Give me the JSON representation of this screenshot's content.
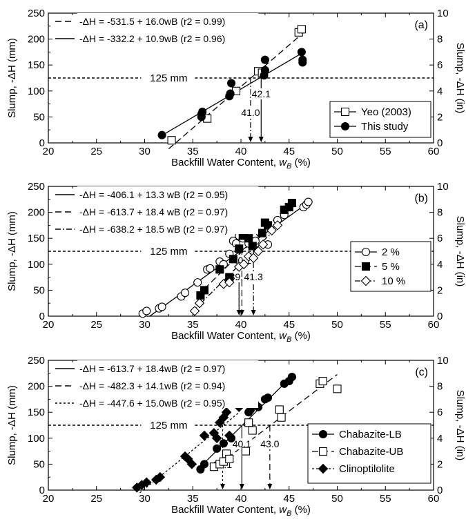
{
  "chart_data": [
    {
      "type": "scatter",
      "panel_label": "(a)",
      "xlabel_main": "Backfill Water Content, ",
      "xlabel_symbol": "w",
      "xlabel_sub": "B",
      "xlabel_unit": " (%)",
      "ylabel_left": "Slump, -ΔH (mm)",
      "ylabel_right": "Slump, -ΔH (in)",
      "xlim": [
        20,
        60
      ],
      "ylim": [
        0,
        250
      ],
      "ylim_right": [
        0,
        10
      ],
      "x_ticks": [
        "20",
        "25",
        "30",
        "35",
        "40",
        "45",
        "50",
        "55",
        "60"
      ],
      "y_ticks": [
        "0",
        "50",
        "100",
        "150",
        "200",
        "250"
      ],
      "y_ticks_right": [
        "0",
        "2",
        "4",
        "6",
        "8",
        "10"
      ],
      "reference_label": "125 mm",
      "reference_y": 125,
      "equations": [
        {
          "text": "-ΔH = -531.5 + 16.0wB (r2 = 0.99)",
          "intercept": -531.5,
          "slope": 16.0,
          "style": "dashed"
        },
        {
          "text": "-ΔH = -332.2 + 10.9wB (r2 = 0.96)",
          "intercept": -332.2,
          "slope": 10.9,
          "style": "solid"
        }
      ],
      "fits": [
        {
          "intercept": -531.5,
          "slope": 16.0,
          "x_range": [
            32.5,
            46.5
          ],
          "style": "dashed"
        },
        {
          "intercept": -332.2,
          "slope": 10.9,
          "x_range": [
            31.8,
            46.3
          ],
          "style": "solid"
        }
      ],
      "arrows": [
        {
          "x": 41.0,
          "label": "41.0",
          "style": "dashdot"
        },
        {
          "x": 42.1,
          "label": "42.1",
          "style": "solid"
        }
      ],
      "legend": {
        "placement": "bottom-right",
        "entries": [
          "Yeo (2003)",
          "This study"
        ]
      },
      "series": [
        {
          "name": "Yeo (2003)",
          "marker": "square-open",
          "x": [
            32.8,
            36.5,
            39.5,
            41.8,
            42.2,
            46.0,
            46.3
          ],
          "y": [
            5,
            47,
            100,
            138,
            135,
            213,
            219
          ]
        },
        {
          "name": "This study",
          "marker": "circle-filled",
          "x": [
            31.8,
            35.9,
            35.9,
            36.0,
            38.8,
            38.9,
            39.0,
            42.4,
            42.5,
            42.5,
            46.3,
            46.4,
            46.4
          ],
          "y": [
            15,
            50,
            55,
            60,
            90,
            95,
            115,
            130,
            140,
            160,
            175,
            160,
            155
          ]
        }
      ]
    },
    {
      "type": "scatter",
      "panel_label": "(b)",
      "xlabel_main": "Backfill Water Content, ",
      "xlabel_symbol": "w",
      "xlabel_sub": "B",
      "xlabel_unit": " (%)",
      "ylabel_left": "Slump, -ΔH (mm)",
      "ylabel_right": "Slump, -ΔH (in)",
      "xlim": [
        20,
        60
      ],
      "ylim": [
        0,
        250
      ],
      "ylim_right": [
        0,
        10
      ],
      "x_ticks": [
        "20",
        "25",
        "30",
        "35",
        "40",
        "45",
        "50",
        "55",
        "60"
      ],
      "y_ticks": [
        "0",
        "50",
        "100",
        "150",
        "200",
        "250"
      ],
      "y_ticks_right": [
        "0",
        "2",
        "4",
        "6",
        "8",
        "10"
      ],
      "reference_label": "125 mm",
      "reference_y": 125,
      "equations": [
        {
          "text": "-ΔH = -406.1 + 13.3 wB (r2 = 0.95)",
          "intercept": -406.1,
          "slope": 13.3,
          "style": "solid"
        },
        {
          "text": "-ΔH = -613.7 + 18.4 wB (r2 = 0.97)",
          "intercept": -613.7,
          "slope": 18.4,
          "style": "dashed"
        },
        {
          "text": "-ΔH = -638.2 + 18.5 wB (r2 = 0.97)",
          "intercept": -638.2,
          "slope": 18.5,
          "style": "dashdot"
        }
      ],
      "fits": [
        {
          "intercept": -406.1,
          "slope": 13.3,
          "x_range": [
            30.5,
            47.0
          ],
          "style": "solid"
        },
        {
          "intercept": -613.7,
          "slope": 18.4,
          "x_range": [
            35.5,
            45.2
          ],
          "style": "dashed"
        },
        {
          "intercept": -638.2,
          "slope": 18.5,
          "x_range": [
            35.0,
            44.0
          ],
          "style": "dashdot"
        }
      ],
      "arrows": [
        {
          "x": 39.8,
          "label": "39.8",
          "style": "solid"
        },
        {
          "x": 40.1,
          "label": "40.1",
          "style": "dashed"
        },
        {
          "x": 41.3,
          "label": "41.3",
          "style": "dashdot"
        }
      ],
      "legend": {
        "placement": "right",
        "entries": [
          "2 %",
          "5 %",
          "10 %"
        ]
      },
      "series": [
        {
          "name": "2 %",
          "marker": "circle-open",
          "x": [
            29.8,
            30.2,
            31.5,
            31.8,
            33.8,
            34.2,
            35.5,
            36.5,
            36.8,
            37.8,
            38.2,
            38.8,
            39.2,
            39.5,
            39.8,
            40.2,
            40.8,
            41.5,
            42.0,
            42.8,
            43.8,
            44.5,
            46.5,
            46.8,
            47.0
          ],
          "y": [
            5,
            10,
            15,
            18,
            38,
            45,
            65,
            90,
            92,
            105,
            100,
            120,
            145,
            140,
            155,
            150,
            140,
            145,
            160,
            138,
            185,
            195,
            210,
            215,
            220
          ]
        },
        {
          "name": "5 %",
          "marker": "square-filled",
          "x": [
            35.8,
            36.2,
            37.8,
            38.8,
            39.2,
            39.8,
            40.2,
            40.8,
            41.2,
            42.2,
            42.5,
            42.8,
            44.5,
            45.0,
            45.3
          ],
          "y": [
            40,
            50,
            90,
            75,
            110,
            130,
            155,
            150,
            135,
            160,
            180,
            175,
            205,
            210,
            218
          ]
        },
        {
          "name": "10 %",
          "marker": "diamond-open",
          "x": [
            35.2,
            35.7,
            38.2,
            38.8,
            39.8,
            40.3,
            40.8,
            41.3,
            41.8,
            42.3,
            43.2,
            43.8
          ],
          "y": [
            10,
            25,
            62,
            65,
            95,
            100,
            115,
            112,
            125,
            138,
            165,
            175
          ]
        }
      ]
    },
    {
      "type": "scatter",
      "panel_label": "(c)",
      "xlabel_main": "Backfill Water Content, ",
      "xlabel_symbol": "w",
      "xlabel_sub": "B",
      "xlabel_unit": " (%)",
      "ylabel_left": "Slump, -ΔH (mm)",
      "ylabel_right": "Slump, -ΔH (in)",
      "xlim": [
        20,
        60
      ],
      "ylim": [
        0,
        250
      ],
      "ylim_right": [
        0,
        10
      ],
      "x_ticks": [
        "20",
        "25",
        "30",
        "35",
        "40",
        "45",
        "50",
        "55",
        "60"
      ],
      "y_ticks": [
        "0",
        "50",
        "100",
        "150",
        "200",
        "250"
      ],
      "y_ticks_right": [
        "0",
        "2",
        "4",
        "6",
        "8",
        "10"
      ],
      "reference_label": "125 mm",
      "reference_y": 125,
      "equations": [
        {
          "text": "-ΔH = -613.7 + 18.4wB (r2 = 0.97)",
          "intercept": -613.7,
          "slope": 18.4,
          "style": "solid"
        },
        {
          "text": "-ΔH = -482.3 + 14.1wB (r2 = 0.94)",
          "intercept": -482.3,
          "slope": 14.1,
          "style": "dashed"
        },
        {
          "text": "-ΔH = -447.6 + 15.0wB (r2 = 0.95)",
          "intercept": -447.6,
          "slope": 15.0,
          "style": "dotted"
        }
      ],
      "fits": [
        {
          "intercept": -613.7,
          "slope": 18.4,
          "x_range": [
            35.5,
            45.3
          ],
          "style": "solid"
        },
        {
          "intercept": -482.3,
          "slope": 14.1,
          "x_range": [
            37.0,
            50.0
          ],
          "style": "dashed"
        },
        {
          "intercept": -447.6,
          "slope": 15.0,
          "x_range": [
            29.5,
            39.8
          ],
          "style": "dotted"
        }
      ],
      "arrows": [
        {
          "x": 38.1,
          "label": "38.1",
          "style": "dotted"
        },
        {
          "x": 40.1,
          "label": "40.1",
          "style": "solid"
        },
        {
          "x": 43.0,
          "label": "43.0",
          "style": "dashed"
        }
      ],
      "legend": {
        "placement": "bottom-right",
        "entries": [
          "Chabazite-LB",
          "Chabazite-UB",
          "Clinoptilolite"
        ]
      },
      "series": [
        {
          "name": "Chabazite-LB",
          "marker": "circle-filled",
          "x": [
            35.8,
            36.2,
            37.5,
            38.2,
            39.0,
            40.8,
            41.0,
            41.5,
            41.8,
            42.5,
            42.8,
            44.5,
            45.0,
            45.3
          ],
          "y": [
            40,
            50,
            80,
            90,
            100,
            150,
            155,
            165,
            160,
            175,
            178,
            205,
            210,
            218
          ]
        },
        {
          "name": "Chabazite-UB",
          "marker": "square-open",
          "x": [
            37.2,
            37.8,
            38.2,
            38.5,
            38.8,
            40.5,
            40.8,
            41.2,
            44.0,
            44.2,
            48.2,
            48.5,
            50.0
          ],
          "y": [
            45,
            50,
            55,
            70,
            60,
            75,
            130,
            115,
            155,
            140,
            205,
            210,
            195
          ]
        },
        {
          "name": "Clinoptilolite",
          "marker": "diamond-filled",
          "x": [
            29.2,
            29.7,
            30.2,
            31.2,
            31.6,
            34.2,
            34.5,
            34.9,
            36.2,
            37.2,
            37.5,
            37.8,
            38.2,
            38.5,
            38.8,
            39.5,
            39.8
          ],
          "y": [
            5,
            10,
            15,
            20,
            25,
            65,
            60,
            50,
            105,
            110,
            100,
            130,
            140,
            150,
            105,
            170,
            160
          ]
        }
      ]
    }
  ]
}
